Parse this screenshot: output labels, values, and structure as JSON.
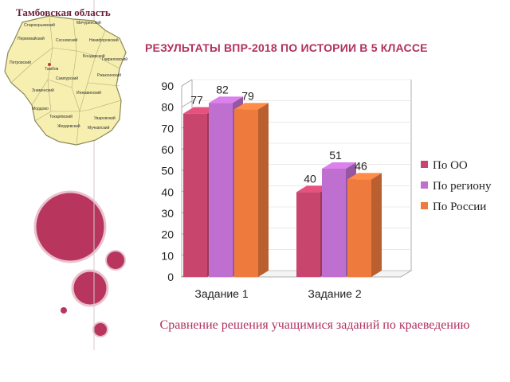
{
  "map": {
    "title": "Тамбовская область",
    "districts": [
      "Староюрьевский",
      "Мичуринский",
      "Первомайский",
      "Сосновский",
      "Петровский",
      "Никифоровский",
      "Бондарский",
      "Гавриловский",
      "Тамбов",
      "Знаменский",
      "Ржаксинский",
      "Сампурский",
      "Мордово",
      "Инжавинский",
      "Токарёвский",
      "Жердевский",
      "Уваровский",
      "Мучкапский"
    ]
  },
  "title": "РЕЗУЛЬТАТЫ ВПР-2018 ПО ИСТОРИИ В 5 КЛАССЕ",
  "caption": "Сравнение решения учащимися заданий по краеведению",
  "chart_data": {
    "type": "bar",
    "categories": [
      "Задание 1",
      "Задание 2"
    ],
    "series": [
      {
        "name": "По ОО",
        "values": [
          77,
          40
        ],
        "color": "#c8466e"
      },
      {
        "name": "По региону",
        "values": [
          82,
          51
        ],
        "color": "#bf6fcf"
      },
      {
        "name": "По России",
        "values": [
          79,
          46
        ],
        "color": "#ef7a3e"
      }
    ],
    "ylim": [
      0,
      90
    ],
    "yticks": [
      0,
      10,
      20,
      30,
      40,
      50,
      60,
      70,
      80,
      90
    ],
    "legend": "right",
    "style": "3d"
  }
}
